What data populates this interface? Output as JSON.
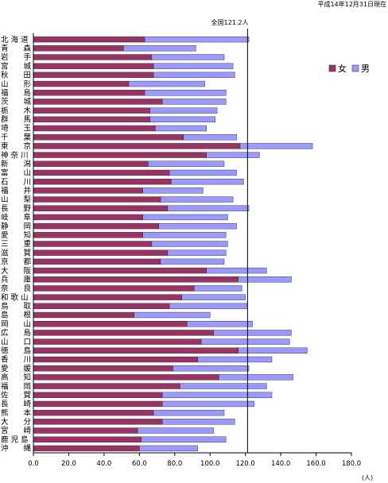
{
  "chart_data": {
    "type": "bar",
    "orientation": "horizontal",
    "stacked": true,
    "date_label": "平成14年12月31日現在",
    "reference_line": {
      "label": "全国121.2人",
      "value": 121.2
    },
    "xlabel": "(人)",
    "xlim": [
      0,
      180
    ],
    "xticks": [
      "0.0",
      "20.0",
      "40.0",
      "60.0",
      "80.0",
      "100.0",
      "120.0",
      "140.0",
      "160.0",
      "180.0"
    ],
    "grid": false,
    "legend_position": "right",
    "categories": [
      "北海道",
      "青森",
      "岩手",
      "宮城",
      "秋田",
      "山形",
      "福島",
      "茨城",
      "栃木",
      "群馬",
      "埼玉",
      "千葉",
      "東京",
      "神奈川",
      "新潟",
      "富山",
      "石川",
      "福井",
      "山梨",
      "長野",
      "岐阜",
      "静岡",
      "愛知",
      "三重",
      "滋賀",
      "京都",
      "大阪",
      "兵庫",
      "奈良",
      "和歌山",
      "鳥取",
      "島根",
      "岡山",
      "広島",
      "山口",
      "徳島",
      "香川",
      "愛媛",
      "高知",
      "福岡",
      "佐賀",
      "長崎",
      "熊本",
      "大分",
      "宮崎",
      "鹿児島",
      "沖縄"
    ],
    "category_labels": [
      "北 海 道",
      "青　　森",
      "岩　　手",
      "宮　　城",
      "秋　　田",
      "山　　形",
      "福　　島",
      "茨　　城",
      "栃　　木",
      "群　　馬",
      "埼　　玉",
      "千　　葉",
      "東　　京",
      "神 奈 川",
      "新　　潟",
      "富　　山",
      "石　　川",
      "福　　井",
      "山　　梨",
      "長　　野",
      "岐　　阜",
      "静　　岡",
      "愛　　知",
      "三　　重",
      "滋　　賀",
      "京　　都",
      "大　　阪",
      "兵　　庫",
      "奈　　良",
      "和 歌 山",
      "鳥　　取",
      "島　　根",
      "岡　　山",
      "広　　島",
      "山　　口",
      "徳　　島",
      "香　　川",
      "愛　　媛",
      "高　　知",
      "福　　岡",
      "佐　　賀",
      "長　　崎",
      "熊　　本",
      "大　　分",
      "宮　　崎",
      "鹿 児 島",
      "沖　　縄"
    ],
    "series": [
      {
        "name": "女",
        "color": "#993366",
        "values": [
          63,
          51,
          67,
          68,
          68,
          54,
          63,
          73,
          66,
          66,
          69,
          85,
          117,
          98,
          65,
          77,
          78,
          62,
          72,
          76,
          62,
          71,
          62,
          67,
          76,
          72,
          98,
          116,
          91,
          84,
          77,
          57,
          87,
          102,
          95,
          116,
          93,
          79,
          105,
          83,
          73,
          73,
          68,
          73,
          59,
          61,
          60
        ]
      },
      {
        "name": "男",
        "color": "#9999ff",
        "values": [
          59,
          41,
          41,
          45,
          46,
          43,
          46,
          36,
          38,
          37,
          29,
          30,
          41,
          30,
          43,
          38,
          41,
          34,
          41,
          46,
          48,
          44,
          47,
          43,
          33,
          36,
          34,
          30,
          27,
          36,
          44,
          43,
          37,
          44,
          50,
          39,
          42,
          43,
          42,
          49,
          62,
          52,
          40,
          41,
          43,
          48,
          33
        ]
      }
    ]
  }
}
